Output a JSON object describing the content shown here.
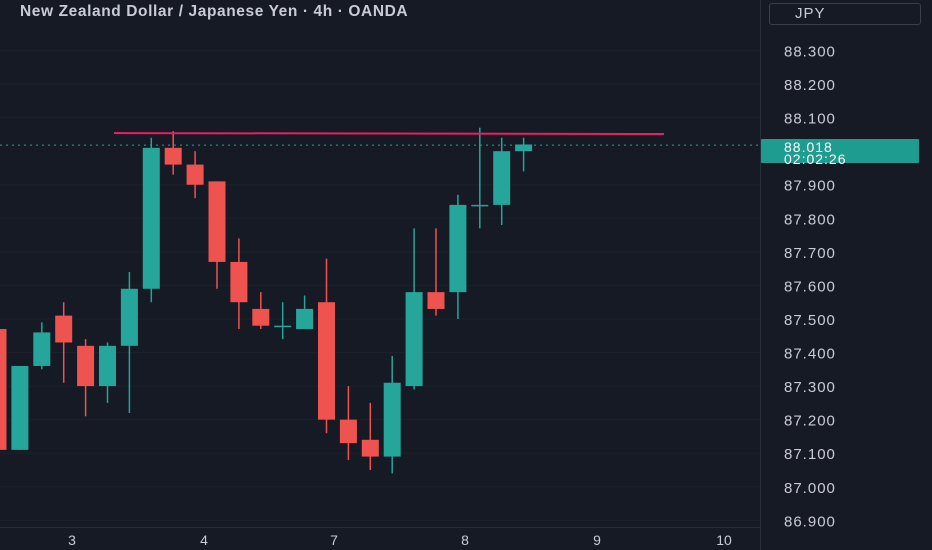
{
  "header": {
    "title": "New Zealand Dollar / Japanese Yen · 4h · OANDA",
    "currency_label": "JPY"
  },
  "last_price": {
    "price": "88.018",
    "countdown": "02:02:26"
  },
  "colors": {
    "background": "#161a25",
    "up": "#26a69a",
    "down": "#ef5350",
    "resistance": "#e91e63",
    "text": "#c9ccd4"
  },
  "chart_data": {
    "type": "candlestick",
    "ylim": [
      86.88,
      88.42
    ],
    "y_ticks": [
      "88.300",
      "88.200",
      "88.100",
      "87.900",
      "87.800",
      "87.700",
      "87.600",
      "87.500",
      "87.400",
      "87.300",
      "87.200",
      "87.100",
      "87.000",
      "86.900"
    ],
    "x_ticks": [
      "3",
      "4",
      "7",
      "8",
      "9",
      "10"
    ],
    "resistance_level": 88.054,
    "last_price": 88.018,
    "candles": [
      {
        "o": 87.47,
        "h": 87.61,
        "l": 87.03,
        "c": 87.11
      },
      {
        "o": 87.11,
        "h": 87.36,
        "l": 87.11,
        "c": 87.36
      },
      {
        "o": 87.36,
        "h": 87.49,
        "l": 87.35,
        "c": 87.46
      },
      {
        "o": 87.51,
        "h": 87.55,
        "l": 87.31,
        "c": 87.43
      },
      {
        "o": 87.42,
        "h": 87.44,
        "l": 87.21,
        "c": 87.3
      },
      {
        "o": 87.3,
        "h": 87.43,
        "l": 87.25,
        "c": 87.42
      },
      {
        "o": 87.42,
        "h": 87.64,
        "l": 87.22,
        "c": 87.59
      },
      {
        "o": 87.59,
        "h": 88.04,
        "l": 87.55,
        "c": 88.01
      },
      {
        "o": 88.01,
        "h": 88.06,
        "l": 87.93,
        "c": 87.96
      },
      {
        "o": 87.96,
        "h": 88.0,
        "l": 87.86,
        "c": 87.9
      },
      {
        "o": 87.91,
        "h": 87.91,
        "l": 87.59,
        "c": 87.67
      },
      {
        "o": 87.67,
        "h": 87.74,
        "l": 87.47,
        "c": 87.55
      },
      {
        "o": 87.53,
        "h": 87.58,
        "l": 87.47,
        "c": 87.48
      },
      {
        "o": 87.48,
        "h": 87.55,
        "l": 87.44,
        "c": 87.48
      },
      {
        "o": 87.47,
        "h": 87.57,
        "l": 87.47,
        "c": 87.53
      },
      {
        "o": 87.55,
        "h": 87.68,
        "l": 87.16,
        "c": 87.2
      },
      {
        "o": 87.2,
        "h": 87.3,
        "l": 87.08,
        "c": 87.13
      },
      {
        "o": 87.14,
        "h": 87.25,
        "l": 87.05,
        "c": 87.09
      },
      {
        "o": 87.09,
        "h": 87.39,
        "l": 87.04,
        "c": 87.31
      },
      {
        "o": 87.3,
        "h": 87.77,
        "l": 87.29,
        "c": 87.58
      },
      {
        "o": 87.58,
        "h": 87.77,
        "l": 87.51,
        "c": 87.53
      },
      {
        "o": 87.58,
        "h": 87.87,
        "l": 87.5,
        "c": 87.84
      },
      {
        "o": 87.84,
        "h": 88.07,
        "l": 87.77,
        "c": 87.84
      },
      {
        "o": 87.84,
        "h": 88.04,
        "l": 87.78,
        "c": 88.0
      },
      {
        "o": 88.0,
        "h": 88.04,
        "l": 87.94,
        "c": 88.02
      }
    ]
  }
}
